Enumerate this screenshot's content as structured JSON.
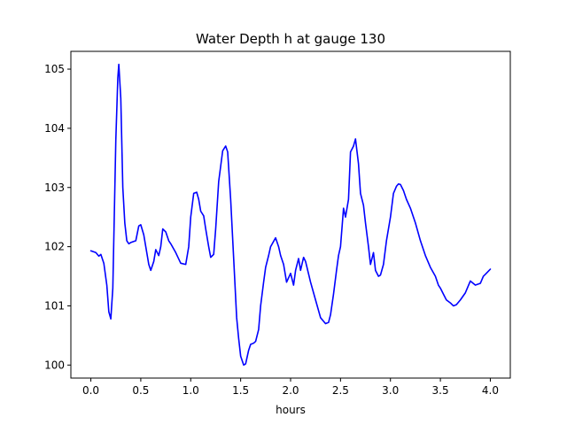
{
  "chart_data": {
    "type": "line",
    "title": "Water Depth h at gauge 130",
    "xlabel": "hours",
    "ylabel": "",
    "xlim": [
      -0.2,
      4.2
    ],
    "ylim": [
      99.78,
      105.3
    ],
    "xticks": [
      0.0,
      0.5,
      1.0,
      1.5,
      2.0,
      2.5,
      3.0,
      3.5,
      4.0
    ],
    "xtick_labels": [
      "0.0",
      "0.5",
      "1.0",
      "1.5",
      "2.0",
      "2.5",
      "3.0",
      "3.5",
      "4.0"
    ],
    "yticks": [
      100,
      101,
      102,
      103,
      104,
      105
    ],
    "ytick_labels": [
      "100",
      "101",
      "102",
      "103",
      "104",
      "105"
    ],
    "grid": false,
    "line_color": "#0000ff",
    "series": [
      {
        "x": [
          0.0,
          0.05,
          0.08,
          0.1,
          0.13,
          0.16,
          0.18,
          0.2,
          0.22,
          0.25,
          0.27,
          0.28,
          0.3,
          0.32,
          0.34,
          0.36,
          0.38,
          0.4,
          0.45,
          0.48,
          0.5,
          0.53,
          0.55,
          0.58,
          0.6,
          0.63,
          0.65,
          0.68,
          0.7,
          0.72,
          0.75,
          0.78,
          0.8,
          0.85,
          0.9,
          0.95,
          0.98,
          1.0,
          1.03,
          1.06,
          1.08,
          1.1,
          1.13,
          1.15,
          1.18,
          1.2,
          1.23,
          1.25,
          1.28,
          1.32,
          1.35,
          1.37,
          1.4,
          1.43,
          1.46,
          1.48,
          1.5,
          1.53,
          1.55,
          1.58,
          1.6,
          1.63,
          1.65,
          1.68,
          1.7,
          1.73,
          1.75,
          1.78,
          1.8,
          1.85,
          1.88,
          1.9,
          1.93,
          1.96,
          2.0,
          2.03,
          2.05,
          2.08,
          2.1,
          2.13,
          2.15,
          2.2,
          2.25,
          2.3,
          2.35,
          2.38,
          2.4,
          2.43,
          2.46,
          2.48,
          2.5,
          2.53,
          2.55,
          2.58,
          2.6,
          2.63,
          2.65,
          2.68,
          2.7,
          2.73,
          2.75,
          2.78,
          2.8,
          2.83,
          2.85,
          2.88,
          2.9,
          2.93,
          2.96,
          3.0,
          3.03,
          3.06,
          3.08,
          3.1,
          3.13,
          3.16,
          3.2,
          3.25,
          3.3,
          3.35,
          3.4,
          3.45,
          3.48,
          3.5,
          3.53,
          3.56,
          3.6,
          3.63,
          3.66,
          3.7,
          3.75,
          3.8,
          3.85,
          3.9,
          3.93,
          3.96,
          4.0
        ],
        "values": [
          101.93,
          101.9,
          101.84,
          101.87,
          101.72,
          101.35,
          100.9,
          100.78,
          101.3,
          103.8,
          104.85,
          105.08,
          104.5,
          103.0,
          102.4,
          102.1,
          102.05,
          102.07,
          102.1,
          102.35,
          102.37,
          102.2,
          102.0,
          101.7,
          101.6,
          101.75,
          101.95,
          101.85,
          102.0,
          102.3,
          102.25,
          102.1,
          102.05,
          101.9,
          101.72,
          101.7,
          102.0,
          102.5,
          102.9,
          102.92,
          102.8,
          102.6,
          102.52,
          102.3,
          102.0,
          101.82,
          101.87,
          102.3,
          103.1,
          103.62,
          103.7,
          103.6,
          102.8,
          101.8,
          100.8,
          100.45,
          100.15,
          100.0,
          100.02,
          100.25,
          100.35,
          100.37,
          100.4,
          100.6,
          101.0,
          101.4,
          101.65,
          101.85,
          102.0,
          102.15,
          102.0,
          101.85,
          101.7,
          101.4,
          101.55,
          101.35,
          101.6,
          101.8,
          101.6,
          101.82,
          101.75,
          101.4,
          101.1,
          100.8,
          100.7,
          100.72,
          100.85,
          101.2,
          101.6,
          101.85,
          102.0,
          102.65,
          102.5,
          102.8,
          103.6,
          103.7,
          103.82,
          103.4,
          102.9,
          102.7,
          102.4,
          102.0,
          101.7,
          101.9,
          101.6,
          101.5,
          101.52,
          101.7,
          102.1,
          102.5,
          102.9,
          103.02,
          103.06,
          103.05,
          102.95,
          102.8,
          102.65,
          102.4,
          102.1,
          101.85,
          101.65,
          101.5,
          101.35,
          101.3,
          101.2,
          101.1,
          101.05,
          101.0,
          101.02,
          101.1,
          101.22,
          101.42,
          101.35,
          101.38,
          101.5,
          101.55,
          101.62
        ]
      }
    ]
  }
}
